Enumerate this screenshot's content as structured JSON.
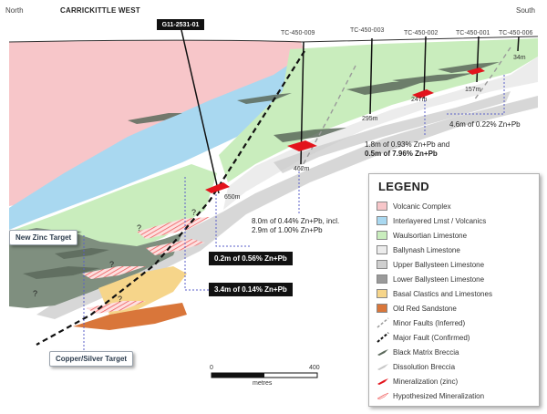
{
  "header": {
    "north": "North",
    "title": "CARRICKITTLE WEST",
    "south": "South"
  },
  "drillholes": {
    "main": "G11-2531-01",
    "h1": "TC-450-009",
    "h2": "TC-450-003",
    "h3": "TC-450-002",
    "h4": "TC-450-001",
    "h5": "TC-450-006"
  },
  "depths": {
    "d_650": "650m",
    "d_462": "462m",
    "d_295": "295m",
    "d_247": "247m",
    "d_157": "157m",
    "d_34": "34m"
  },
  "annotations": {
    "a_009_line1": "8.0m of 0.44% Zn+Pb, incl.",
    "a_009_line2": "2.9m of 1.00% Zn+Pb",
    "a_002_line1": "1.8m of 0.93% Zn+Pb and",
    "a_002_line2": "0.5m of 7.96% Zn+Pb",
    "a_001": "4.6m of 0.22% Zn+Pb",
    "box_1": "0.2m of 0.56% Zn+Pb",
    "box_2": "3.4m of 0.14% Zn+Pb"
  },
  "targets": {
    "zinc": "New Zinc Target",
    "copper": "Copper/Silver Target"
  },
  "question_marks": [
    "?",
    "?",
    "?",
    "?",
    "?"
  ],
  "legend": {
    "title": "LEGEND",
    "items": [
      {
        "label": "Volcanic Complex",
        "color": "#f7c6c9"
      },
      {
        "label": "Interlayered Lmst / Volcanics",
        "color": "#a9d8f0"
      },
      {
        "label": "Waulsortian Limestone",
        "color": "#c9edbd"
      },
      {
        "label": "Ballynash Limestone",
        "color": "#ececec"
      },
      {
        "label": "Upper Ballysteen Limestone",
        "color": "#cfcfcf"
      },
      {
        "label": "Lower Ballysteen Limestone",
        "color": "#9a9a9a"
      },
      {
        "label": "Basal Clastics and Limestones",
        "color": "#f6d58a"
      },
      {
        "label": "Old Red Sandstone",
        "color": "#d9763a"
      },
      {
        "label": "Minor Faults (Inferred)",
        "color": "#bdbdbd"
      },
      {
        "label": "Major Fault (Confirmed)",
        "color": "#111111"
      },
      {
        "label": "Black Matrix Breccia",
        "color": "#5c6a5c"
      },
      {
        "label": "Dissolution Breccia",
        "color": "#c8c8c8"
      },
      {
        "label": "Mineralization (zinc)",
        "color": "#e3141c"
      },
      {
        "label": "Hypothesized Mineralization",
        "color": "#f07a7a"
      }
    ]
  },
  "scale": {
    "start": "0",
    "end": "400",
    "unit": "metres"
  }
}
